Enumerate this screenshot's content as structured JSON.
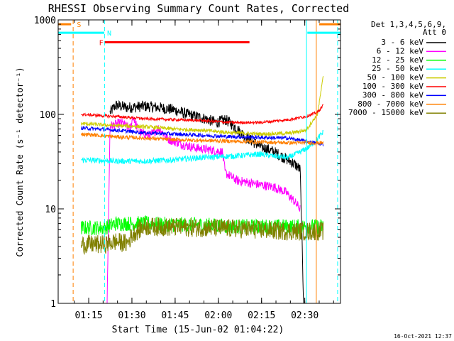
{
  "chart_data": {
    "type": "line",
    "title": "RHESSI Observing Summary Count Rates, Corrected",
    "xlabel": "Start Time (15-Jun-02 01:04:22)",
    "ylabel": "Corrected Count Rate (s⁻¹ detector⁻¹)",
    "yscale": "log",
    "ylim": [
      1,
      1000
    ],
    "xlim_minutes": [
      0,
      98
    ],
    "x_ticks": [
      {
        "label": "01:15",
        "minute": 10.6
      },
      {
        "label": "01:30",
        "minute": 25.6
      },
      {
        "label": "01:45",
        "minute": 40.6
      },
      {
        "label": "02:00",
        "minute": 55.6
      },
      {
        "label": "02:15",
        "minute": 70.6
      },
      {
        "label": "02:30",
        "minute": 85.6
      }
    ],
    "y_ticks": [
      {
        "label": "1",
        "value": 1
      },
      {
        "label": "10",
        "value": 10
      },
      {
        "label": "100",
        "value": 100
      },
      {
        "label": "1000",
        "value": 1000
      }
    ],
    "legend_title": [
      "Det 1,3,4,5,6,9,",
      "Att 0"
    ],
    "series": [
      {
        "name": "3 - 6 keV",
        "color": "#000000",
        "noise": 0.06,
        "points": [
          [
            18,
            105
          ],
          [
            20,
            125
          ],
          [
            24,
            118
          ],
          [
            30,
            122
          ],
          [
            35,
            118
          ],
          [
            40,
            112
          ],
          [
            45,
            100
          ],
          [
            50,
            92
          ],
          [
            55,
            82
          ],
          [
            58,
            88
          ],
          [
            60,
            80
          ],
          [
            65,
            58
          ],
          [
            70,
            46
          ],
          [
            75,
            40
          ],
          [
            79,
            34
          ],
          [
            82,
            30
          ],
          [
            84,
            26
          ],
          [
            85.2,
            1
          ]
        ]
      },
      {
        "name": "6 - 12 keV",
        "color": "#ff00ff",
        "noise": 0.05,
        "points": [
          [
            17,
            1
          ],
          [
            18,
            75
          ],
          [
            22,
            82
          ],
          [
            25,
            70
          ],
          [
            26,
            95
          ],
          [
            28,
            65
          ],
          [
            32,
            60
          ],
          [
            35,
            72
          ],
          [
            38,
            55
          ],
          [
            43,
            48
          ],
          [
            48,
            44
          ],
          [
            53,
            42
          ],
          [
            57,
            40
          ],
          [
            58,
            24
          ],
          [
            62,
            20
          ],
          [
            66,
            19
          ],
          [
            70,
            18
          ],
          [
            75,
            17
          ],
          [
            79,
            15
          ],
          [
            82,
            12
          ],
          [
            84,
            10
          ]
        ]
      },
      {
        "name": "12 - 25 keV",
        "color": "#00ff00",
        "noise": 0.08,
        "points": [
          [
            8,
            6.3
          ],
          [
            16,
            6.3
          ],
          [
            20,
            7
          ],
          [
            30,
            7
          ],
          [
            40,
            6.8
          ],
          [
            50,
            6.8
          ],
          [
            60,
            6.5
          ],
          [
            70,
            6.5
          ],
          [
            80,
            6.5
          ],
          [
            92,
            6.5
          ]
        ]
      },
      {
        "name": "25 - 50 keV",
        "color": "#00ffff",
        "noise": 0.03,
        "points": [
          [
            8,
            33
          ],
          [
            20,
            32
          ],
          [
            30,
            32
          ],
          [
            40,
            33
          ],
          [
            50,
            35
          ],
          [
            60,
            36
          ],
          [
            70,
            38
          ],
          [
            75,
            36
          ],
          [
            80,
            35
          ],
          [
            84,
            40
          ],
          [
            87,
            45
          ],
          [
            90,
            55
          ],
          [
            92,
            65
          ]
        ]
      },
      {
        "name": "50 - 100 keV",
        "color": "#cccc00",
        "noise": 0.02,
        "points": [
          [
            8,
            80
          ],
          [
            20,
            76
          ],
          [
            30,
            74
          ],
          [
            40,
            70
          ],
          [
            50,
            68
          ],
          [
            60,
            64
          ],
          [
            70,
            62
          ],
          [
            80,
            63
          ],
          [
            86,
            68
          ],
          [
            90,
            100
          ],
          [
            92,
            250
          ]
        ]
      },
      {
        "name": "100 - 300 keV",
        "color": "#ff0000",
        "noise": 0.015,
        "points": [
          [
            8,
            100
          ],
          [
            20,
            95
          ],
          [
            30,
            90
          ],
          [
            40,
            88
          ],
          [
            50,
            86
          ],
          [
            60,
            82
          ],
          [
            70,
            82
          ],
          [
            80,
            88
          ],
          [
            86,
            95
          ],
          [
            90,
            105
          ],
          [
            92,
            125
          ]
        ]
      },
      {
        "name": "300 - 800 keV",
        "color": "#0000ff",
        "noise": 0.02,
        "points": [
          [
            8,
            72
          ],
          [
            20,
            68
          ],
          [
            30,
            64
          ],
          [
            40,
            62
          ],
          [
            50,
            60
          ],
          [
            60,
            58
          ],
          [
            70,
            57
          ],
          [
            80,
            56
          ],
          [
            86,
            52
          ],
          [
            92,
            48
          ]
        ]
      },
      {
        "name": "800 - 7000 keV",
        "color": "#ff8000",
        "noise": 0.02,
        "points": [
          [
            8,
            62
          ],
          [
            20,
            58
          ],
          [
            30,
            56
          ],
          [
            40,
            54
          ],
          [
            50,
            53
          ],
          [
            60,
            52
          ],
          [
            70,
            51
          ],
          [
            80,
            50
          ],
          [
            86,
            50
          ],
          [
            92,
            50
          ]
        ]
      },
      {
        "name": "7000 - 15000 keV",
        "color": "#808000",
        "noise": 0.1,
        "points": [
          [
            8,
            4.2
          ],
          [
            16,
            4.2
          ],
          [
            20,
            4.5
          ],
          [
            24,
            4.3
          ],
          [
            26,
            5.5
          ],
          [
            30,
            6.5
          ],
          [
            40,
            6.4
          ],
          [
            50,
            6.3
          ],
          [
            60,
            6.2
          ],
          [
            70,
            6
          ],
          [
            80,
            5.8
          ],
          [
            92,
            5.8
          ]
        ]
      }
    ],
    "annotations": [
      {
        "label": "S",
        "color": "#ff8000",
        "level": 900,
        "ranges": [
          [
            0,
            4.5
          ],
          [
            90.6,
            98
          ]
        ],
        "marker_minute": 6.5
      },
      {
        "label": "N",
        "color": "#00ffff",
        "level": 730,
        "ranges": [
          [
            0,
            16
          ],
          [
            86.5,
            98
          ]
        ],
        "marker_minute": 17
      },
      {
        "label": "F",
        "color": "#ff0000",
        "level": 580,
        "ranges": [
          [
            16.2,
            66.4
          ]
        ],
        "marker_minute": 14.2
      }
    ],
    "vertical_lines": [
      {
        "minute": 5.2,
        "color": "#ff8000",
        "dash": true
      },
      {
        "minute": 16.1,
        "color": "#00ffff",
        "dash": true
      },
      {
        "minute": 86.2,
        "color": "#00ffff",
        "dash": false
      },
      {
        "minute": 89.6,
        "color": "#ff8000",
        "dash": false
      },
      {
        "minute": 97,
        "color": "#00ffff",
        "dash": true
      }
    ],
    "timestamp": "16-Oct-2021 12:37"
  }
}
